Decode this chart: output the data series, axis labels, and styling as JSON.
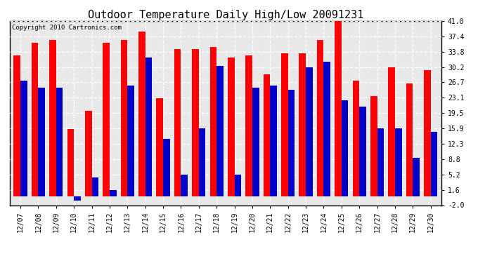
{
  "title": "Outdoor Temperature Daily High/Low 20091231",
  "copyright": "Copyright 2010 Cartronics.com",
  "dates": [
    "12/07",
    "12/08",
    "12/09",
    "12/10",
    "12/11",
    "12/12",
    "12/13",
    "12/14",
    "12/15",
    "12/16",
    "12/17",
    "12/18",
    "12/19",
    "12/20",
    "12/21",
    "12/22",
    "12/23",
    "12/24",
    "12/25",
    "12/26",
    "12/27",
    "12/28",
    "12/29",
    "12/30"
  ],
  "highs": [
    33.0,
    36.0,
    36.5,
    15.8,
    20.0,
    36.0,
    36.5,
    38.5,
    23.0,
    34.5,
    34.5,
    35.0,
    32.5,
    33.0,
    28.5,
    33.5,
    33.5,
    36.5,
    41.0,
    27.0,
    23.5,
    30.2,
    26.5,
    29.5
  ],
  "lows": [
    27.0,
    25.5,
    25.5,
    -1.0,
    4.5,
    1.5,
    26.0,
    32.5,
    13.5,
    5.2,
    15.9,
    30.5,
    5.2,
    25.5,
    26.0,
    25.0,
    30.2,
    31.5,
    22.5,
    21.0,
    15.9,
    15.9,
    9.0,
    15.2
  ],
  "high_color": "#ff0000",
  "low_color": "#0000cc",
  "bg_color": "#ffffff",
  "yticks": [
    -2.0,
    1.6,
    5.2,
    8.8,
    12.3,
    15.9,
    19.5,
    23.1,
    26.7,
    30.2,
    33.8,
    37.4,
    41.0
  ],
  "ymin": -2.0,
  "ymax": 41.0,
  "bar_width": 0.38,
  "grid_color": "#ffffff",
  "grid_alpha": 0.9,
  "title_fontsize": 11,
  "tick_fontsize": 7,
  "copyright_fontsize": 6.5
}
